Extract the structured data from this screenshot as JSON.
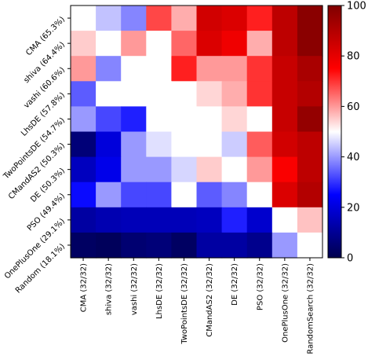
{
  "chart_data": {
    "type": "heatmap",
    "title": "",
    "xlabel": "",
    "ylabel": "",
    "x_categories": [
      "CMA (32/32)",
      "shiva (32/32)",
      "vashi (32/32)",
      "LhsDE (32/32)",
      "TwoPointsDE (32/32)",
      "CMandAS2 (32/32)",
      "DE (32/32)",
      "PSO (32/32)",
      "OnePlusOne (32/32)",
      "RandomSearch (32/32)"
    ],
    "y_categories": [
      "CMA (65.3%)",
      "shiva (64.4%)",
      "vashi (60.6%)",
      "LhsDE (57.8%)",
      "TwoPointsDE (54.7%)",
      "CMandAS2 (50.3%)",
      "DE (50.3%)",
      "PSO (49.4%)",
      "OnePlusOne (29.1%)",
      "Random (18.1%)"
    ],
    "values": [
      [
        50,
        44,
        38,
        68,
        58,
        84,
        82,
        72,
        88,
        98
      ],
      [
        55,
        50,
        60,
        50,
        65,
        82,
        78,
        58,
        88,
        98
      ],
      [
        60,
        38,
        50,
        50,
        72,
        60,
        60,
        70,
        86,
        92
      ],
      [
        34,
        50,
        50,
        50,
        50,
        54,
        58,
        70,
        86,
        90
      ],
      [
        40,
        32,
        28,
        50,
        50,
        50,
        54,
        50,
        86,
        96
      ],
      [
        6,
        20,
        40,
        47,
        50,
        50,
        45,
        66,
        84,
        88
      ],
      [
        16,
        22,
        40,
        40,
        46,
        55,
        50,
        60,
        76,
        88
      ],
      [
        26,
        40,
        32,
        32,
        50,
        34,
        38,
        50,
        82,
        90
      ],
      [
        12,
        14,
        15,
        15,
        15,
        16,
        28,
        18,
        50,
        56
      ],
      [
        3,
        2,
        5,
        6,
        3,
        12,
        12,
        9,
        40,
        50
      ]
    ],
    "colormap": "seismic",
    "vmin": 0,
    "vmax": 100,
    "colorbar_ticks": [
      0,
      20,
      40,
      60,
      80,
      100
    ]
  }
}
